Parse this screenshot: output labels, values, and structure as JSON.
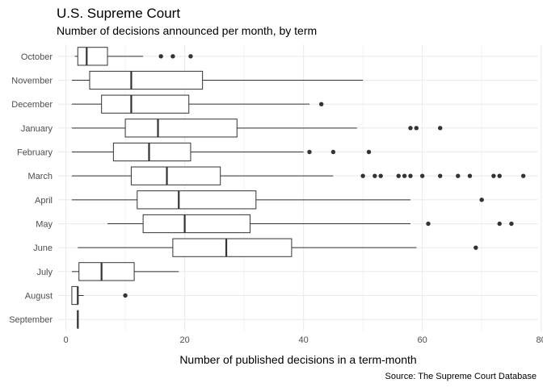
{
  "chart_data": {
    "type": "boxplot",
    "orientation": "horizontal",
    "title": "U.S. Supreme Court",
    "subtitle": "Number of decisions announced per month, by term",
    "xlabel": "Number of published decisions in a term-month",
    "ylabel": "",
    "caption": "Source: The Supreme Court Database",
    "xlim": [
      -1.3,
      79.5
    ],
    "x_ticks": [
      0,
      20,
      40,
      60,
      80
    ],
    "grid": true,
    "legend": "none",
    "categories": [
      "October",
      "November",
      "December",
      "January",
      "February",
      "March",
      "April",
      "May",
      "June",
      "July",
      "August",
      "September"
    ],
    "boxes": [
      {
        "label": "October",
        "min": 1.5,
        "q1": 2,
        "median": 3.5,
        "q3": 7,
        "max": 13,
        "outliers": [
          16,
          18,
          21
        ]
      },
      {
        "label": "November",
        "min": 1,
        "q1": 4,
        "median": 11,
        "q3": 23,
        "max": 50,
        "outliers": []
      },
      {
        "label": "December",
        "min": 1,
        "q1": 6,
        "median": 11,
        "q3": 20.7,
        "max": 41,
        "outliers": [
          43
        ]
      },
      {
        "label": "January",
        "min": 1,
        "q1": 10,
        "median": 15.5,
        "q3": 28.8,
        "max": 49,
        "outliers": [
          58,
          59,
          63
        ]
      },
      {
        "label": "February",
        "min": 1,
        "q1": 8,
        "median": 14,
        "q3": 21,
        "max": 40,
        "outliers": [
          41,
          45,
          51
        ]
      },
      {
        "label": "March",
        "min": 1,
        "q1": 11,
        "median": 17,
        "q3": 26,
        "max": 45,
        "outliers": [
          50,
          52,
          53,
          56,
          57,
          58,
          60,
          63,
          66,
          68,
          72,
          73,
          77
        ]
      },
      {
        "label": "April",
        "min": 1,
        "q1": 12,
        "median": 19,
        "q3": 32,
        "max": 58,
        "outliers": [
          70
        ]
      },
      {
        "label": "May",
        "min": 7,
        "q1": 13,
        "median": 20,
        "q3": 31,
        "max": 58,
        "outliers": [
          61,
          73,
          75
        ]
      },
      {
        "label": "June",
        "min": 2,
        "q1": 18,
        "median": 27,
        "q3": 38,
        "max": 59,
        "outliers": [
          69
        ]
      },
      {
        "label": "July",
        "min": 1,
        "q1": 2.2,
        "median": 6,
        "q3": 11.5,
        "max": 19,
        "outliers": []
      },
      {
        "label": "August",
        "min": 1,
        "q1": 1,
        "median": 2,
        "q3": 2,
        "max": 3,
        "outliers": [
          10
        ]
      },
      {
        "label": "September",
        "min": 2,
        "q1": 2,
        "median": 2,
        "q3": 2,
        "max": 2,
        "outliers": []
      }
    ],
    "colors": {
      "box_fill": "#ffffff",
      "box_stroke": "#333333",
      "outlier": "#333333",
      "grid": "#ebebeb",
      "tick_text": "#4d4d4d"
    }
  }
}
